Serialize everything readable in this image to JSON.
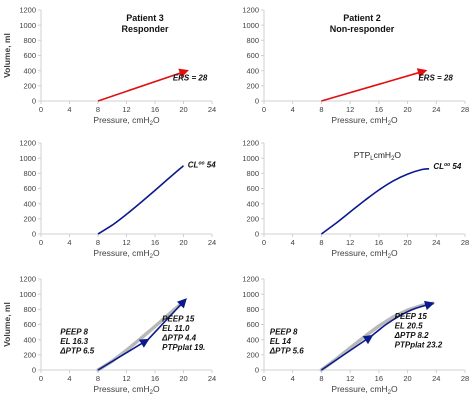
{
  "chart_data": [
    {
      "type": "line",
      "panel": "patient-3-elastance",
      "title": "Patient 3",
      "subtitle": "Responder",
      "xlabel": "Pressure, cmH",
      "xlabel_sub": "2",
      "xlabel_tail": "O",
      "ylabel": "Volume, ml",
      "xlim": [
        0,
        24
      ],
      "ylim": [
        0,
        1200
      ],
      "xticks": [
        "0",
        "4",
        "8",
        "12",
        "16",
        "20",
        "24"
      ],
      "yticks": [
        "0",
        "200",
        "400",
        "600",
        "800",
        "1000",
        "1200"
      ],
      "series": [
        {
          "color": "#e01010",
          "arrow": true,
          "points": [
            [
              8,
              0
            ],
            [
              20.5,
              400
            ]
          ]
        }
      ],
      "annotations": [
        {
          "text": "ERS = 28",
          "x": 18.5,
          "y": 270
        }
      ]
    },
    {
      "type": "line",
      "panel": "patient-2-elastance",
      "title": "Patient 2",
      "subtitle": "Non-responder",
      "xlabel": "Pressure, cmH",
      "xlabel_sub": "2",
      "xlabel_tail": "O",
      "ylabel": "",
      "xlim": [
        0,
        28
      ],
      "ylim": [
        0,
        1200
      ],
      "xticks": [
        "0",
        "4",
        "8",
        "12",
        "16",
        "20",
        "24",
        "28"
      ],
      "yticks": [
        "0",
        "200",
        "400",
        "600",
        "800",
        "1000",
        "1200"
      ],
      "series": [
        {
          "color": "#e01010",
          "arrow": true,
          "points": [
            [
              8,
              0
            ],
            [
              22.5,
              400
            ]
          ]
        }
      ],
      "annotations": [
        {
          "text": "ERS = 28",
          "x": 21.5,
          "y": 270
        }
      ]
    },
    {
      "type": "line",
      "panel": "patient-3-compliance",
      "xlabel": "Pressure, cmH",
      "xlabel_sub": "2",
      "xlabel_tail": "O",
      "ylabel": "",
      "xlim": [
        0,
        24
      ],
      "ylim": [
        0,
        1200
      ],
      "xticks": [
        "0",
        "4",
        "8",
        "12",
        "16",
        "20",
        "24"
      ],
      "yticks": [
        "0",
        "200",
        "400",
        "600",
        "800",
        "1000",
        "1200"
      ],
      "series": [
        {
          "color": "#0a1a8c",
          "arrow": false,
          "points": [
            [
              8,
              0
            ],
            [
              10,
              118
            ],
            [
              12,
              260
            ],
            [
              14,
              415
            ],
            [
              16,
              575
            ],
            [
              18,
              740
            ],
            [
              20,
              900
            ]
          ]
        }
      ],
      "annotations": [
        {
          "text": "CL",
          "sup": "oo",
          "tail": " 54",
          "x": 20.6,
          "y": 880
        }
      ]
    },
    {
      "type": "line",
      "panel": "patient-2-compliance",
      "xlabel": "Pressure, cmH",
      "xlabel_sub": "2",
      "xlabel_tail": "O",
      "ylabel": "",
      "xlim": [
        0,
        28
      ],
      "ylim": [
        0,
        1200
      ],
      "xticks": [
        "0",
        "4",
        "8",
        "12",
        "16",
        "20",
        "24",
        "28"
      ],
      "yticks": [
        "0",
        "200",
        "400",
        "600",
        "800",
        "1000",
        "1200"
      ],
      "series": [
        {
          "color": "#0a1a8c",
          "arrow": false,
          "points": [
            [
              8,
              0
            ],
            [
              10,
              140
            ],
            [
              12,
              290
            ],
            [
              14,
              440
            ],
            [
              16,
              580
            ],
            [
              18,
              700
            ],
            [
              20,
              790
            ],
            [
              22,
              850
            ],
            [
              23,
              860
            ]
          ]
        }
      ],
      "annotations": [
        {
          "text": "PTP",
          "sub": "L",
          "tail": "cmH",
          "sub2": "2",
          "tail2": "O",
          "x": 12.5,
          "y": 1000,
          "plain": true
        },
        {
          "text": "CL",
          "sup": "oo",
          "tail": " 54",
          "x": 23.6,
          "y": 860
        }
      ]
    },
    {
      "type": "line",
      "panel": "patient-3-peep",
      "xlabel": "Pressure, cmH",
      "xlabel_sub": "2",
      "xlabel_tail": "O",
      "ylabel": "Volume, ml",
      "xlim": [
        0,
        24
      ],
      "ylim": [
        0,
        1200
      ],
      "xticks": [
        "0",
        "4",
        "8",
        "12",
        "16",
        "20",
        "24"
      ],
      "yticks": [
        "0",
        "200",
        "400",
        "600",
        "800",
        "1000",
        "1200"
      ],
      "gray_curve": [
        [
          8,
          0
        ],
        [
          10,
          118
        ],
        [
          12,
          260
        ],
        [
          14,
          415
        ],
        [
          16,
          575
        ],
        [
          18,
          740
        ],
        [
          20,
          900
        ]
      ],
      "series": [
        {
          "color": "#0a1a8c",
          "arrow": true,
          "points": [
            [
              8,
              0
            ],
            [
              15,
              400
            ]
          ]
        },
        {
          "color": "#0a1a8c",
          "arrow": true,
          "points": [
            [
              15,
              400
            ],
            [
              20.3,
              930
            ]
          ]
        }
      ],
      "annotations": [
        {
          "lines": [
            "PEEP 8",
            "EL 16.3",
            "ΔPTP 6.5"
          ],
          "x": 2.7,
          "y": 470
        },
        {
          "lines": [
            "PEEP 15",
            "EL 11.0",
            "ΔPTP 4.4",
            "PTPplat 19."
          ],
          "x": 17.0,
          "y": 640
        }
      ]
    },
    {
      "type": "line",
      "panel": "patient-2-peep",
      "xlabel": "Pressure, cmH",
      "xlabel_sub": "2",
      "xlabel_tail": "O",
      "ylabel": "",
      "xlim": [
        0,
        28
      ],
      "ylim": [
        0,
        1200
      ],
      "xticks": [
        "0",
        "4",
        "8",
        "12",
        "16",
        "20",
        "24",
        "28"
      ],
      "yticks": [
        "0",
        "200",
        "400",
        "600",
        "800",
        "1000",
        "1200"
      ],
      "gray_curve": [
        [
          8,
          0
        ],
        [
          10,
          140
        ],
        [
          12,
          290
        ],
        [
          14,
          440
        ],
        [
          16,
          580
        ],
        [
          18,
          700
        ],
        [
          20,
          790
        ],
        [
          22,
          850
        ],
        [
          23.5,
          880
        ]
      ],
      "series": [
        {
          "color": "#0a1a8c",
          "arrow": true,
          "points": [
            [
              8,
              0
            ],
            [
              15,
              450
            ]
          ]
        },
        {
          "color": "#0a1a8c",
          "arrow": true,
          "points": [
            [
              15,
              450
            ],
            [
              17,
              600
            ],
            [
              19,
              720
            ],
            [
              21,
              810
            ],
            [
              23.5,
              880
            ]
          ]
        }
      ],
      "annotations": [
        {
          "lines": [
            "PEEP 8",
            "EL 14",
            "ΔPTP 5.6"
          ],
          "x": 0.8,
          "y": 470
        },
        {
          "lines": [
            "PEEP 15",
            "EL 20.5",
            "ΔPTP 8.2",
            "PTPplat 23.2"
          ],
          "x": 18.2,
          "y": 670
        }
      ]
    }
  ]
}
